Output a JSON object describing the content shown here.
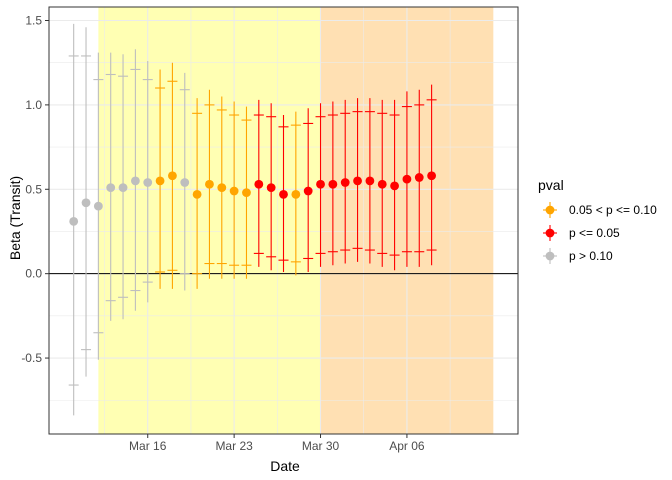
{
  "chart_data": {
    "type": "scatter",
    "title": "",
    "xlabel": "Date",
    "ylabel": "Beta (Transit)",
    "x_ticks": [
      "Mar 16",
      "Mar 23",
      "Mar 30",
      "Apr 06"
    ],
    "y_ticks": [
      "-0.5",
      "0.0",
      "0.5",
      "1.0",
      "1.5"
    ],
    "ylim": [
      -0.95,
      1.58
    ],
    "xlim_dates": [
      "2020-03-08",
      "2020-04-15"
    ],
    "grid": true,
    "hline": 0,
    "shaded_regions": [
      {
        "start": "2020-03-12",
        "end": "2020-03-30",
        "color": "#FFFFB3"
      },
      {
        "start": "2020-03-30",
        "end": "2020-04-13",
        "color": "#FFE0B3"
      }
    ],
    "legend": {
      "title": "pval",
      "position": "right",
      "entries": [
        {
          "label": "0.05 < p <= 0.10",
          "color": "#FFA500"
        },
        {
          "label": "p <= 0.05",
          "color": "#FF0000"
        },
        {
          "label": "p > 0.10",
          "color": "#BEBEBE"
        }
      ]
    },
    "point_colors": {
      "gray": "#BEBEBE",
      "orange": "#FFA500",
      "red": "#FF0000"
    },
    "points": [
      {
        "date": "2020-03-10",
        "y": 0.31,
        "lo95": -0.84,
        "hi95": 1.48,
        "lo90": -0.66,
        "hi90": 1.29,
        "cat": "gray"
      },
      {
        "date": "2020-03-11",
        "y": 0.42,
        "lo95": -0.61,
        "hi95": 1.46,
        "lo90": -0.45,
        "hi90": 1.29,
        "cat": "gray"
      },
      {
        "date": "2020-03-12",
        "y": 0.4,
        "lo95": -0.51,
        "hi95": 1.31,
        "lo90": -0.35,
        "hi90": 1.15,
        "cat": "gray"
      },
      {
        "date": "2020-03-13",
        "y": 0.51,
        "lo95": -0.28,
        "hi95": 1.31,
        "lo90": -0.16,
        "hi90": 1.18,
        "cat": "gray"
      },
      {
        "date": "2020-03-14",
        "y": 0.51,
        "lo95": -0.27,
        "hi95": 1.3,
        "lo90": -0.14,
        "hi90": 1.17,
        "cat": "gray"
      },
      {
        "date": "2020-03-15",
        "y": 0.55,
        "lo95": -0.22,
        "hi95": 1.33,
        "lo90": -0.1,
        "hi90": 1.21,
        "cat": "gray"
      },
      {
        "date": "2020-03-16",
        "y": 0.54,
        "lo95": -0.17,
        "hi95": 1.26,
        "lo90": -0.05,
        "hi90": 1.15,
        "cat": "gray"
      },
      {
        "date": "2020-03-17",
        "y": 0.55,
        "lo95": -0.09,
        "hi95": 1.21,
        "lo90": 0.01,
        "hi90": 1.1,
        "cat": "orange"
      },
      {
        "date": "2020-03-18",
        "y": 0.58,
        "lo95": -0.09,
        "hi95": 1.25,
        "lo90": 0.02,
        "hi90": 1.14,
        "cat": "orange"
      },
      {
        "date": "2020-03-19",
        "y": 0.54,
        "lo95": -0.1,
        "hi95": 1.19,
        "lo90": 0.0,
        "hi90": 1.09,
        "cat": "gray"
      },
      {
        "date": "2020-03-20",
        "y": 0.47,
        "lo95": -0.09,
        "hi95": 1.04,
        "lo90": 0.0,
        "hi90": 0.95,
        "cat": "orange"
      },
      {
        "date": "2020-03-21",
        "y": 0.53,
        "lo95": -0.03,
        "hi95": 1.09,
        "lo90": 0.06,
        "hi90": 1.0,
        "cat": "orange"
      },
      {
        "date": "2020-03-22",
        "y": 0.51,
        "lo95": -0.03,
        "hi95": 1.05,
        "lo90": 0.06,
        "hi90": 0.97,
        "cat": "orange"
      },
      {
        "date": "2020-03-23",
        "y": 0.49,
        "lo95": -0.03,
        "hi95": 1.02,
        "lo90": 0.05,
        "hi90": 0.94,
        "cat": "orange"
      },
      {
        "date": "2020-03-24",
        "y": 0.48,
        "lo95": -0.03,
        "hi95": 0.99,
        "lo90": 0.05,
        "hi90": 0.91,
        "cat": "orange"
      },
      {
        "date": "2020-03-25",
        "y": 0.53,
        "lo95": 0.04,
        "hi95": 1.03,
        "lo90": 0.12,
        "hi90": 0.94,
        "cat": "red"
      },
      {
        "date": "2020-03-26",
        "y": 0.51,
        "lo95": 0.02,
        "hi95": 1.01,
        "lo90": 0.1,
        "hi90": 0.93,
        "cat": "red"
      },
      {
        "date": "2020-03-27",
        "y": 0.47,
        "lo95": 0.01,
        "hi95": 0.94,
        "lo90": 0.08,
        "hi90": 0.87,
        "cat": "red"
      },
      {
        "date": "2020-03-28",
        "y": 0.47,
        "lo95": -0.01,
        "hi95": 0.96,
        "lo90": 0.07,
        "hi90": 0.88,
        "cat": "orange"
      },
      {
        "date": "2020-03-29",
        "y": 0.49,
        "lo95": 0.01,
        "hi95": 0.98,
        "lo90": 0.09,
        "hi90": 0.89,
        "cat": "red"
      },
      {
        "date": "2020-03-30",
        "y": 0.53,
        "lo95": 0.04,
        "hi95": 1.01,
        "lo90": 0.12,
        "hi90": 0.93,
        "cat": "red"
      },
      {
        "date": "2020-03-31",
        "y": 0.53,
        "lo95": 0.05,
        "hi95": 1.02,
        "lo90": 0.13,
        "hi90": 0.94,
        "cat": "red"
      },
      {
        "date": "2020-04-01",
        "y": 0.54,
        "lo95": 0.06,
        "hi95": 1.03,
        "lo90": 0.14,
        "hi90": 0.95,
        "cat": "red"
      },
      {
        "date": "2020-04-02",
        "y": 0.55,
        "lo95": 0.07,
        "hi95": 1.04,
        "lo90": 0.15,
        "hi90": 0.96,
        "cat": "red"
      },
      {
        "date": "2020-04-03",
        "y": 0.55,
        "lo95": 0.06,
        "hi95": 1.04,
        "lo90": 0.14,
        "hi90": 0.96,
        "cat": "red"
      },
      {
        "date": "2020-04-04",
        "y": 0.53,
        "lo95": 0.04,
        "hi95": 1.03,
        "lo90": 0.12,
        "hi90": 0.95,
        "cat": "red"
      },
      {
        "date": "2020-04-05",
        "y": 0.52,
        "lo95": 0.02,
        "hi95": 1.03,
        "lo90": 0.11,
        "hi90": 0.94,
        "cat": "red"
      },
      {
        "date": "2020-04-06",
        "y": 0.56,
        "lo95": 0.04,
        "hi95": 1.08,
        "lo90": 0.13,
        "hi90": 0.99,
        "cat": "red"
      },
      {
        "date": "2020-04-07",
        "y": 0.57,
        "lo95": 0.04,
        "hi95": 1.09,
        "lo90": 0.13,
        "hi90": 1.0,
        "cat": "red"
      },
      {
        "date": "2020-04-08",
        "y": 0.58,
        "lo95": 0.05,
        "hi95": 1.12,
        "lo90": 0.14,
        "hi90": 1.03,
        "cat": "red"
      }
    ]
  }
}
